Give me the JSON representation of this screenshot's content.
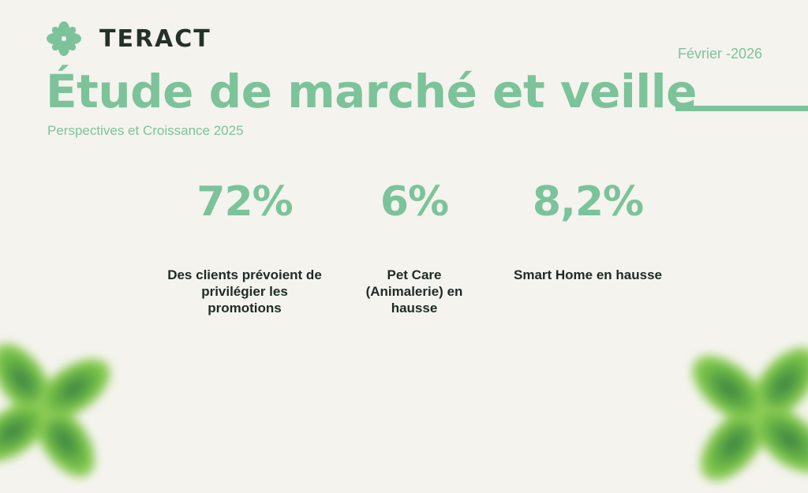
{
  "brand": {
    "name": "TERACT",
    "accent_color": "#7cc39b",
    "dark_color": "#243129"
  },
  "header": {
    "date": "Février -2026",
    "title": "Étude de marché et veille",
    "subtitle": "Perspectives et Croissance 2025"
  },
  "stats": [
    {
      "value": "72%",
      "description": "Des clients prévoient de privilégier les promotions"
    },
    {
      "value": "6%",
      "description": "Pet Care (Animalerie) en hausse"
    },
    {
      "value": "8,2%",
      "description": "Smart Home en hausse"
    }
  ],
  "decorations": {
    "corner_leaves": "clover-leaf-icon"
  }
}
